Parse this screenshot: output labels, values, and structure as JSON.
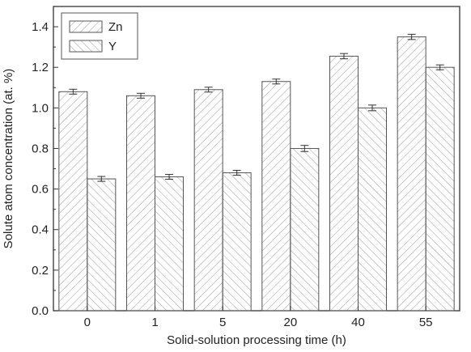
{
  "chart_data": {
    "type": "bar",
    "categories": [
      "0",
      "1",
      "5",
      "20",
      "40",
      "55"
    ],
    "series": [
      {
        "name": "Zn",
        "values": [
          1.08,
          1.06,
          1.09,
          1.13,
          1.255,
          1.35
        ],
        "errors": [
          0.012,
          0.012,
          0.012,
          0.012,
          0.013,
          0.013
        ],
        "pattern": "forward-diagonal"
      },
      {
        "name": "Y",
        "values": [
          0.65,
          0.66,
          0.68,
          0.8,
          1.0,
          1.2
        ],
        "errors": [
          0.012,
          0.012,
          0.012,
          0.015,
          0.014,
          0.012
        ],
        "pattern": "back-diagonal"
      }
    ],
    "xlabel": "Solid-solution processing time (h)",
    "ylabel": "Solute atom concentration (at. %)",
    "ylim": [
      0,
      1.5
    ],
    "yticks": [
      "0.0",
      "0.2",
      "0.4",
      "0.6",
      "0.8",
      "1.0",
      "1.2",
      "1.4"
    ],
    "grid": false,
    "legend_position": "top-left",
    "colors": {
      "bar_fill": "#ffffff",
      "hatch": "#9a9a9a",
      "bar_edge": "#555555",
      "axis": "#333333"
    }
  }
}
